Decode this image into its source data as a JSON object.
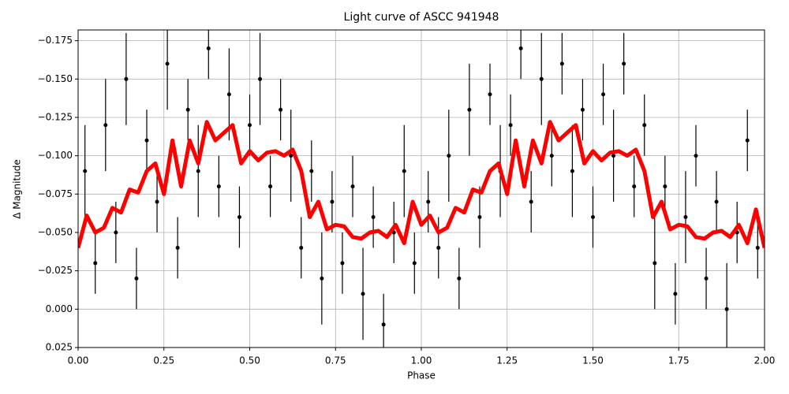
{
  "chart_data": {
    "type": "scatter",
    "title": "Light curve of ASCC 941948",
    "x_label": "Phase",
    "y_label": "Δ Magnitude",
    "xlim": [
      0,
      2
    ],
    "ylim": [
      0.025,
      -0.182
    ],
    "grid": true,
    "xticks": [
      {
        "value": 0,
        "label": "0.00"
      },
      0.25,
      {
        "value": 0.5,
        "label": "0.50"
      },
      0.75,
      {
        "value": 1,
        "label": "1.00"
      },
      1.25,
      {
        "value": 1.5,
        "label": "1.50"
      },
      1.75,
      {
        "value": 2,
        "label": "2.00"
      }
    ],
    "yticks": [
      {
        "value": -0.175,
        "label": "−0.175"
      },
      {
        "value": -0.15,
        "label": "−0.150"
      },
      {
        "value": -0.125,
        "label": "−0.125"
      },
      {
        "value": -0.1,
        "label": "−0.100"
      },
      {
        "value": -0.075,
        "label": "−0.075"
      },
      {
        "value": -0.05,
        "label": "−0.050"
      },
      {
        "value": -0.025,
        "label": "−0.025"
      },
      {
        "value": 0,
        "label": "0.000"
      },
      0.025
    ],
    "points": {
      "color": "#000000",
      "x": [
        0.02,
        0.05,
        0.08,
        0.11,
        0.14,
        0.17,
        0.2,
        0.23,
        0.26,
        0.29,
        0.32,
        0.35,
        0.38,
        0.41,
        0.44,
        0.47,
        0.5,
        0.53,
        0.56,
        0.59,
        0.62,
        0.65,
        0.68,
        0.71,
        0.74,
        0.77,
        0.8,
        0.83,
        0.86,
        0.89,
        0.92,
        0.95,
        0.98,
        1.02,
        1.05,
        1.08,
        1.11,
        1.14,
        1.17,
        1.2,
        1.23,
        1.26,
        1.29,
        1.32,
        1.35,
        1.38,
        1.41,
        1.44,
        1.47,
        1.5,
        1.53,
        1.56,
        1.59,
        1.62,
        1.65,
        1.68,
        1.71,
        1.74,
        1.77,
        1.8,
        1.83,
        1.86,
        1.89,
        1.92,
        1.95,
        1.98
      ],
      "values": [
        -0.09,
        -0.03,
        -0.12,
        -0.05,
        -0.15,
        -0.02,
        -0.11,
        -0.07,
        -0.16,
        -0.04,
        -0.13,
        -0.09,
        -0.17,
        -0.08,
        -0.14,
        -0.06,
        -0.12,
        -0.15,
        -0.08,
        -0.13,
        -0.1,
        -0.04,
        -0.09,
        -0.02,
        -0.07,
        -0.03,
        -0.08,
        -0.01,
        -0.06,
        0.01,
        -0.05,
        -0.09,
        -0.03,
        -0.07,
        -0.04,
        -0.1,
        -0.02,
        -0.13,
        -0.06,
        -0.14,
        -0.09,
        -0.12,
        -0.17,
        -0.07,
        -0.15,
        -0.1,
        -0.16,
        -0.09,
        -0.13,
        -0.06,
        -0.14,
        -0.1,
        -0.16,
        -0.08,
        -0.12,
        -0.03,
        -0.08,
        -0.01,
        -0.06,
        -0.1,
        -0.02,
        -0.07,
        0.0,
        -0.05,
        -0.11,
        -0.04
      ],
      "errors": [
        0.03,
        0.02,
        0.03,
        0.02,
        0.03,
        0.02,
        0.02,
        0.02,
        0.03,
        0.02,
        0.02,
        0.03,
        0.02,
        0.02,
        0.03,
        0.02,
        0.02,
        0.03,
        0.02,
        0.02,
        0.03,
        0.02,
        0.02,
        0.03,
        0.02,
        0.02,
        0.02,
        0.03,
        0.02,
        0.02,
        0.02,
        0.03,
        0.02,
        0.02,
        0.02,
        0.03,
        0.02,
        0.03,
        0.02,
        0.02,
        0.03,
        0.02,
        0.02,
        0.02,
        0.03,
        0.02,
        0.02,
        0.03,
        0.02,
        0.02,
        0.02,
        0.03,
        0.02,
        0.02,
        0.02,
        0.03,
        0.02,
        0.02,
        0.03,
        0.02,
        0.02,
        0.02,
        0.03,
        0.02,
        0.02,
        0.02
      ]
    },
    "model": {
      "color": "#ff0000",
      "x": [
        0,
        0.025,
        0.05,
        0.075,
        0.1,
        0.125,
        0.15,
        0.175,
        0.2,
        0.225,
        0.25,
        0.275,
        0.3,
        0.325,
        0.35,
        0.375,
        0.4,
        0.425,
        0.45,
        0.475,
        0.5,
        0.525,
        0.55,
        0.575,
        0.6,
        0.625,
        0.65,
        0.675,
        0.7,
        0.725,
        0.75,
        0.775,
        0.8,
        0.825,
        0.85,
        0.875,
        0.9,
        0.925,
        0.95,
        0.975,
        1,
        1.025,
        1.05,
        1.075,
        1.1,
        1.125,
        1.15,
        1.175,
        1.2,
        1.225,
        1.25,
        1.275,
        1.3,
        1.325,
        1.35,
        1.375,
        1.4,
        1.425,
        1.45,
        1.475,
        1.5,
        1.525,
        1.55,
        1.575,
        1.6,
        1.625,
        1.65,
        1.675,
        1.7,
        1.725,
        1.75,
        1.775,
        1.8,
        1.825,
        1.85,
        1.875,
        1.9,
        1.925,
        1.95,
        1.975,
        2
      ],
      "values": [
        -0.04,
        -0.061,
        -0.05,
        -0.053,
        -0.066,
        -0.063,
        -0.078,
        -0.076,
        -0.09,
        -0.095,
        -0.075,
        -0.11,
        -0.08,
        -0.11,
        -0.095,
        -0.122,
        -0.11,
        -0.115,
        -0.12,
        -0.095,
        -0.103,
        -0.097,
        -0.102,
        -0.103,
        -0.1,
        -0.104,
        -0.09,
        -0.06,
        -0.07,
        -0.052,
        -0.055,
        -0.054,
        -0.047,
        -0.046,
        -0.05,
        -0.051,
        -0.047,
        -0.055,
        -0.043,
        -0.07,
        -0.055,
        -0.061,
        -0.05,
        -0.053,
        -0.066,
        -0.063,
        -0.078,
        -0.076,
        -0.09,
        -0.095,
        -0.075,
        -0.11,
        -0.08,
        -0.11,
        -0.095,
        -0.122,
        -0.11,
        -0.115,
        -0.12,
        -0.095,
        -0.103,
        -0.097,
        -0.102,
        -0.103,
        -0.1,
        -0.104,
        -0.09,
        -0.06,
        -0.07,
        -0.052,
        -0.055,
        -0.054,
        -0.047,
        -0.046,
        -0.05,
        -0.051,
        -0.047,
        -0.055,
        -0.043,
        -0.065,
        -0.04
      ]
    }
  }
}
